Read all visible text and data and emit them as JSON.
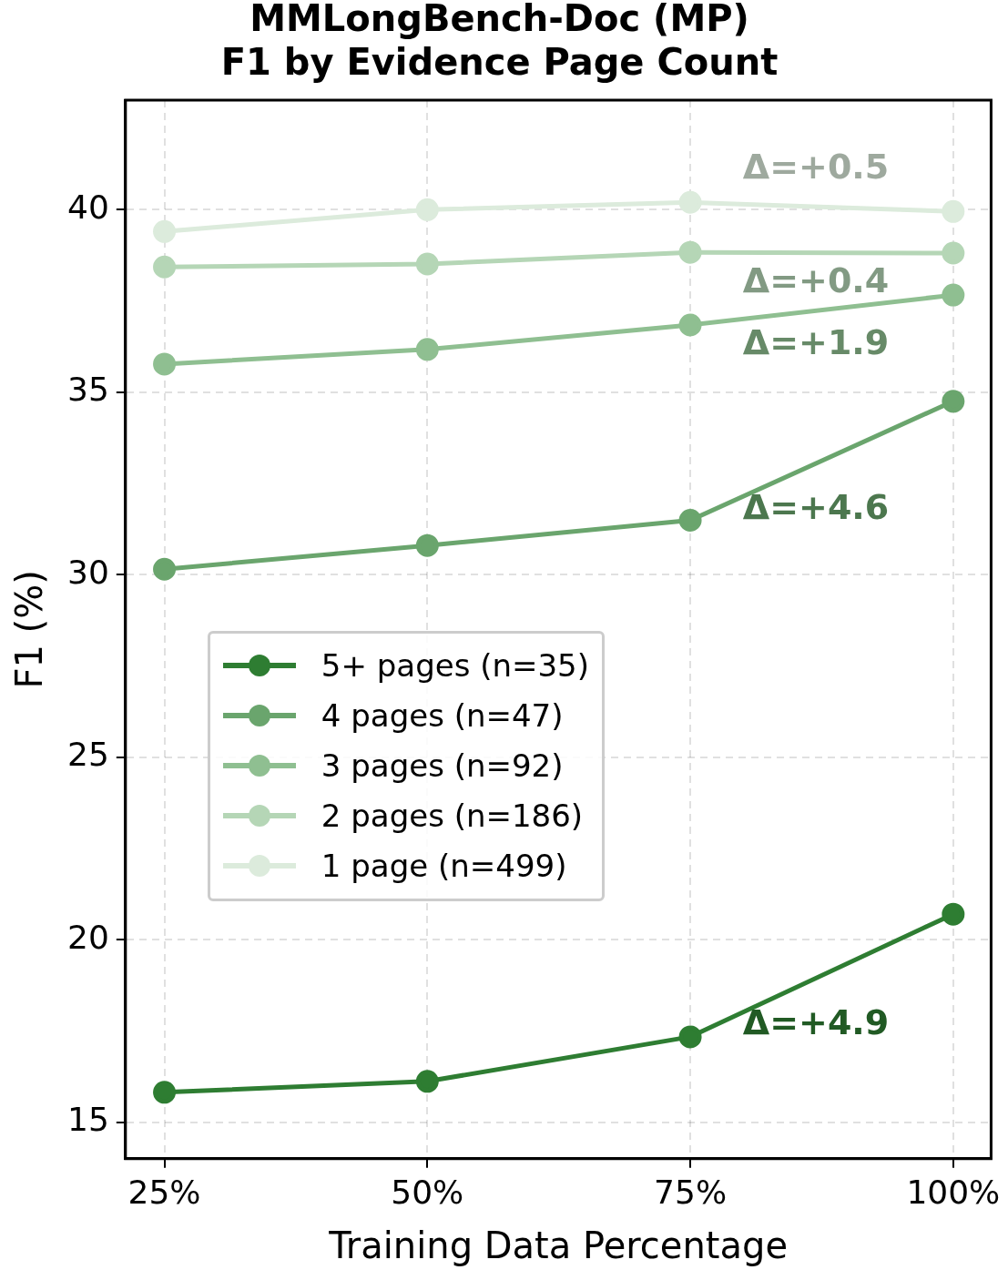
{
  "chart_data": {
    "type": "line",
    "title": "MMLongBench-Doc (MP)\nF1 by Evidence Page Count",
    "xlabel": "Training Data Percentage",
    "ylabel": "F1 (%)",
    "x": [
      25,
      50,
      75,
      100
    ],
    "xlim": [
      21.3,
      103.6
    ],
    "xticks": [
      {
        "value": 25,
        "label": "25%"
      },
      {
        "value": 50,
        "label": "50%"
      },
      {
        "value": 75,
        "label": "75%"
      },
      {
        "value": 100,
        "label": "100%"
      }
    ],
    "ylim": [
      14,
      43
    ],
    "yticks": [
      15,
      20,
      25,
      30,
      35,
      40
    ],
    "series": [
      {
        "name": "5+ pages (n=35)",
        "color": "#2e7d32",
        "values": [
          15.82,
          16.12,
          17.34,
          20.7
        ]
      },
      {
        "name": "4 pages (n=47)",
        "color": "#6aa56d",
        "values": [
          30.15,
          30.8,
          31.49,
          34.75
        ]
      },
      {
        "name": "3 pages (n=92)",
        "color": "#8fbf91",
        "values": [
          35.77,
          36.17,
          36.84,
          37.66
        ]
      },
      {
        "name": "2 pages (n=186)",
        "color": "#b5d6b6",
        "values": [
          38.43,
          38.51,
          38.83,
          38.81
        ]
      },
      {
        "name": "1 page (n=499)",
        "color": "#dcebdc",
        "values": [
          39.4,
          40.0,
          40.2,
          39.95
        ]
      }
    ],
    "annotations": [
      "Δ=+4.9",
      "Δ=+4.6",
      "Δ=+1.9",
      "Δ=+0.4",
      "Δ=+0.5"
    ],
    "grid": true,
    "legend": "center left",
    "marker": "circle",
    "line_style": "solid"
  }
}
